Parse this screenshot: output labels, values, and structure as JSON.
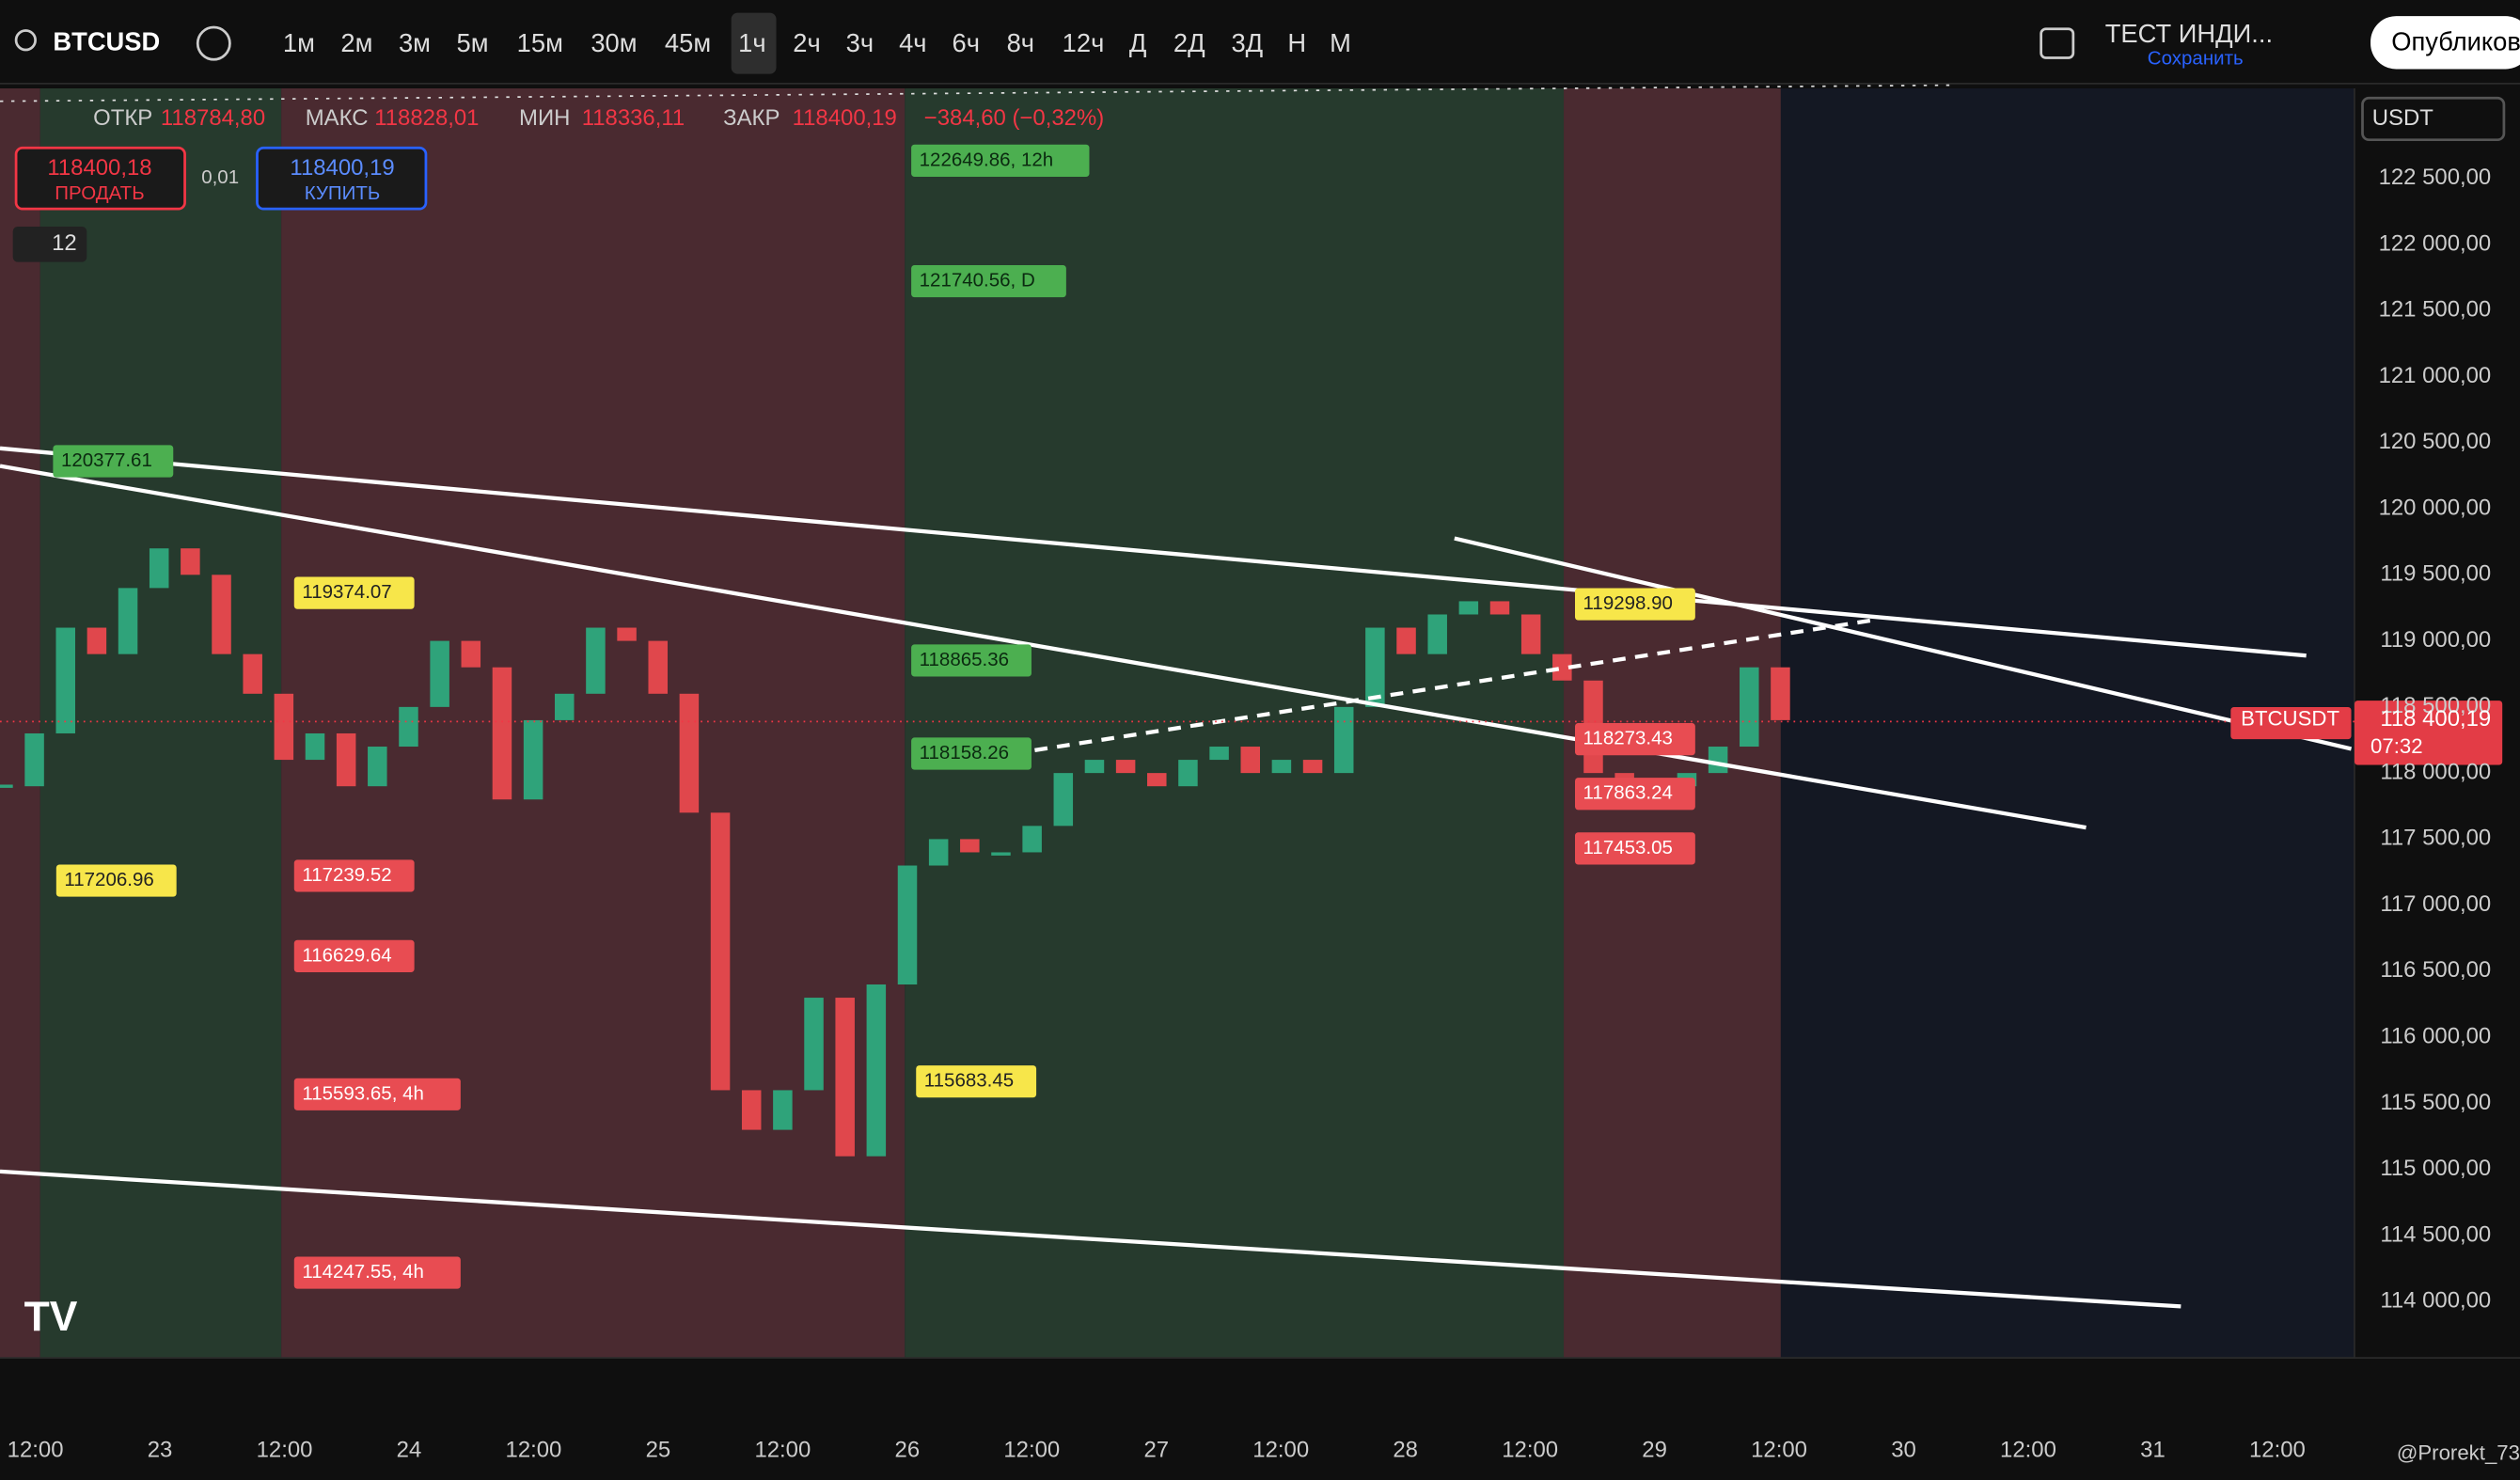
{
  "toolbar": {
    "symbol": "BTCUSD",
    "intervals": [
      "1м",
      "2м",
      "3м",
      "5м",
      "15м",
      "30м",
      "45м",
      "1ч",
      "2ч",
      "3ч",
      "4ч",
      "6ч",
      "8ч",
      "12ч",
      "Д",
      "2Д",
      "3Д",
      "Н",
      "М"
    ],
    "active_interval": 7,
    "layout_name": "ТЕСТ ИНДИ...",
    "save": "Сохранить",
    "publish": "Опубликов"
  },
  "legend": {
    "open_label": "ОТКР",
    "open": "118784,80",
    "high_label": "МАКС",
    "high": "118828,01",
    "low_label": "МИН",
    "low": "118336,11",
    "close_label": "ЗАКР",
    "close": "118400,19",
    "change": "−384,60 (−0,32%)"
  },
  "trade": {
    "sell_price": "118400,18",
    "sell": "ПРОДАТЬ",
    "buy_price": "118400,19",
    "buy": "КУПИТЬ",
    "qty": "0,01",
    "collapse": "12"
  },
  "currency": "USDT",
  "price_axis": {
    "ticks": [
      {
        "value": 122500,
        "label": "122 500,00"
      },
      {
        "value": 122000,
        "label": "122 000,00"
      },
      {
        "value": 121500,
        "label": "121 500,00"
      },
      {
        "value": 121000,
        "label": "121 000,00"
      },
      {
        "value": 120500,
        "label": "120 500,00"
      },
      {
        "value": 120000,
        "label": "120 000,00"
      },
      {
        "value": 119500,
        "label": "119 500,00"
      },
      {
        "value": 119000,
        "label": "119 000,00"
      },
      {
        "value": 118500,
        "label": "118 500,00"
      },
      {
        "value": 118000,
        "label": "118 000,00"
      },
      {
        "value": 117500,
        "label": "117 500,00"
      },
      {
        "value": 117000,
        "label": "117 000,00"
      },
      {
        "value": 116500,
        "label": "116 500,00"
      },
      {
        "value": 116000,
        "label": "116 000,00"
      },
      {
        "value": 115500,
        "label": "115 500,00"
      },
      {
        "value": 115000,
        "label": "115 000,00"
      },
      {
        "value": 114500,
        "label": "114 500,00"
      },
      {
        "value": 114000,
        "label": "114 000,00"
      }
    ],
    "last_symbol": "BTCUSDT",
    "last_value": 118400.19,
    "last_label": "118 400,19",
    "countdown": "07:32"
  },
  "time_axis": [
    "12:00",
    "23",
    "12:00",
    "24",
    "12:00",
    "25",
    "12:00",
    "26",
    "12:00",
    "27",
    "12:00",
    "28",
    "12:00",
    "29",
    "12:00",
    "30",
    "12:00",
    "31",
    "12:00"
  ],
  "closes": [
    117900,
    118300,
    119100,
    118900,
    119400,
    119700,
    119500,
    118900,
    118600,
    118100,
    118300,
    117900,
    118200,
    118500,
    119000,
    118800,
    117800,
    118400,
    118600,
    119100,
    119000,
    118600,
    117700,
    115600,
    115300,
    115600,
    116300,
    115100,
    116400,
    117300,
    117500,
    117400,
    117400,
    117600,
    118000,
    118100,
    118000,
    117900,
    118100,
    118200,
    118000,
    118100,
    118000,
    118500,
    119100,
    118900,
    119200,
    119300,
    119200,
    118900,
    118700,
    118000,
    117800,
    117900,
    118000,
    118200,
    118800,
    118400.19
  ],
  "levels": [
    {
      "text": "122649.86, 12h",
      "kind": "green"
    },
    {
      "text": "121740.56, D",
      "kind": "green"
    },
    {
      "text": "118865.36",
      "kind": "green"
    },
    {
      "text": "118158.26",
      "kind": "green"
    },
    {
      "text": "120377.61",
      "kind": "green"
    },
    {
      "text": "119374.07",
      "kind": "yellow"
    },
    {
      "text": "117206.96",
      "kind": "yellow"
    },
    {
      "text": "115683.45",
      "kind": "yellow"
    },
    {
      "text": "119298.90",
      "kind": "yellow"
    },
    {
      "text": "117239.52",
      "kind": "red"
    },
    {
      "text": "116629.64",
      "kind": "red"
    },
    {
      "text": "115593.65, 4h",
      "kind": "red"
    },
    {
      "text": "114247.55, 4h",
      "kind": "red"
    },
    {
      "text": "117453.05",
      "kind": "red"
    },
    {
      "text": "118273.43",
      "kind": "red"
    },
    {
      "text": "117863.24",
      "kind": "red"
    }
  ],
  "author": "@Prorekt_73"
}
